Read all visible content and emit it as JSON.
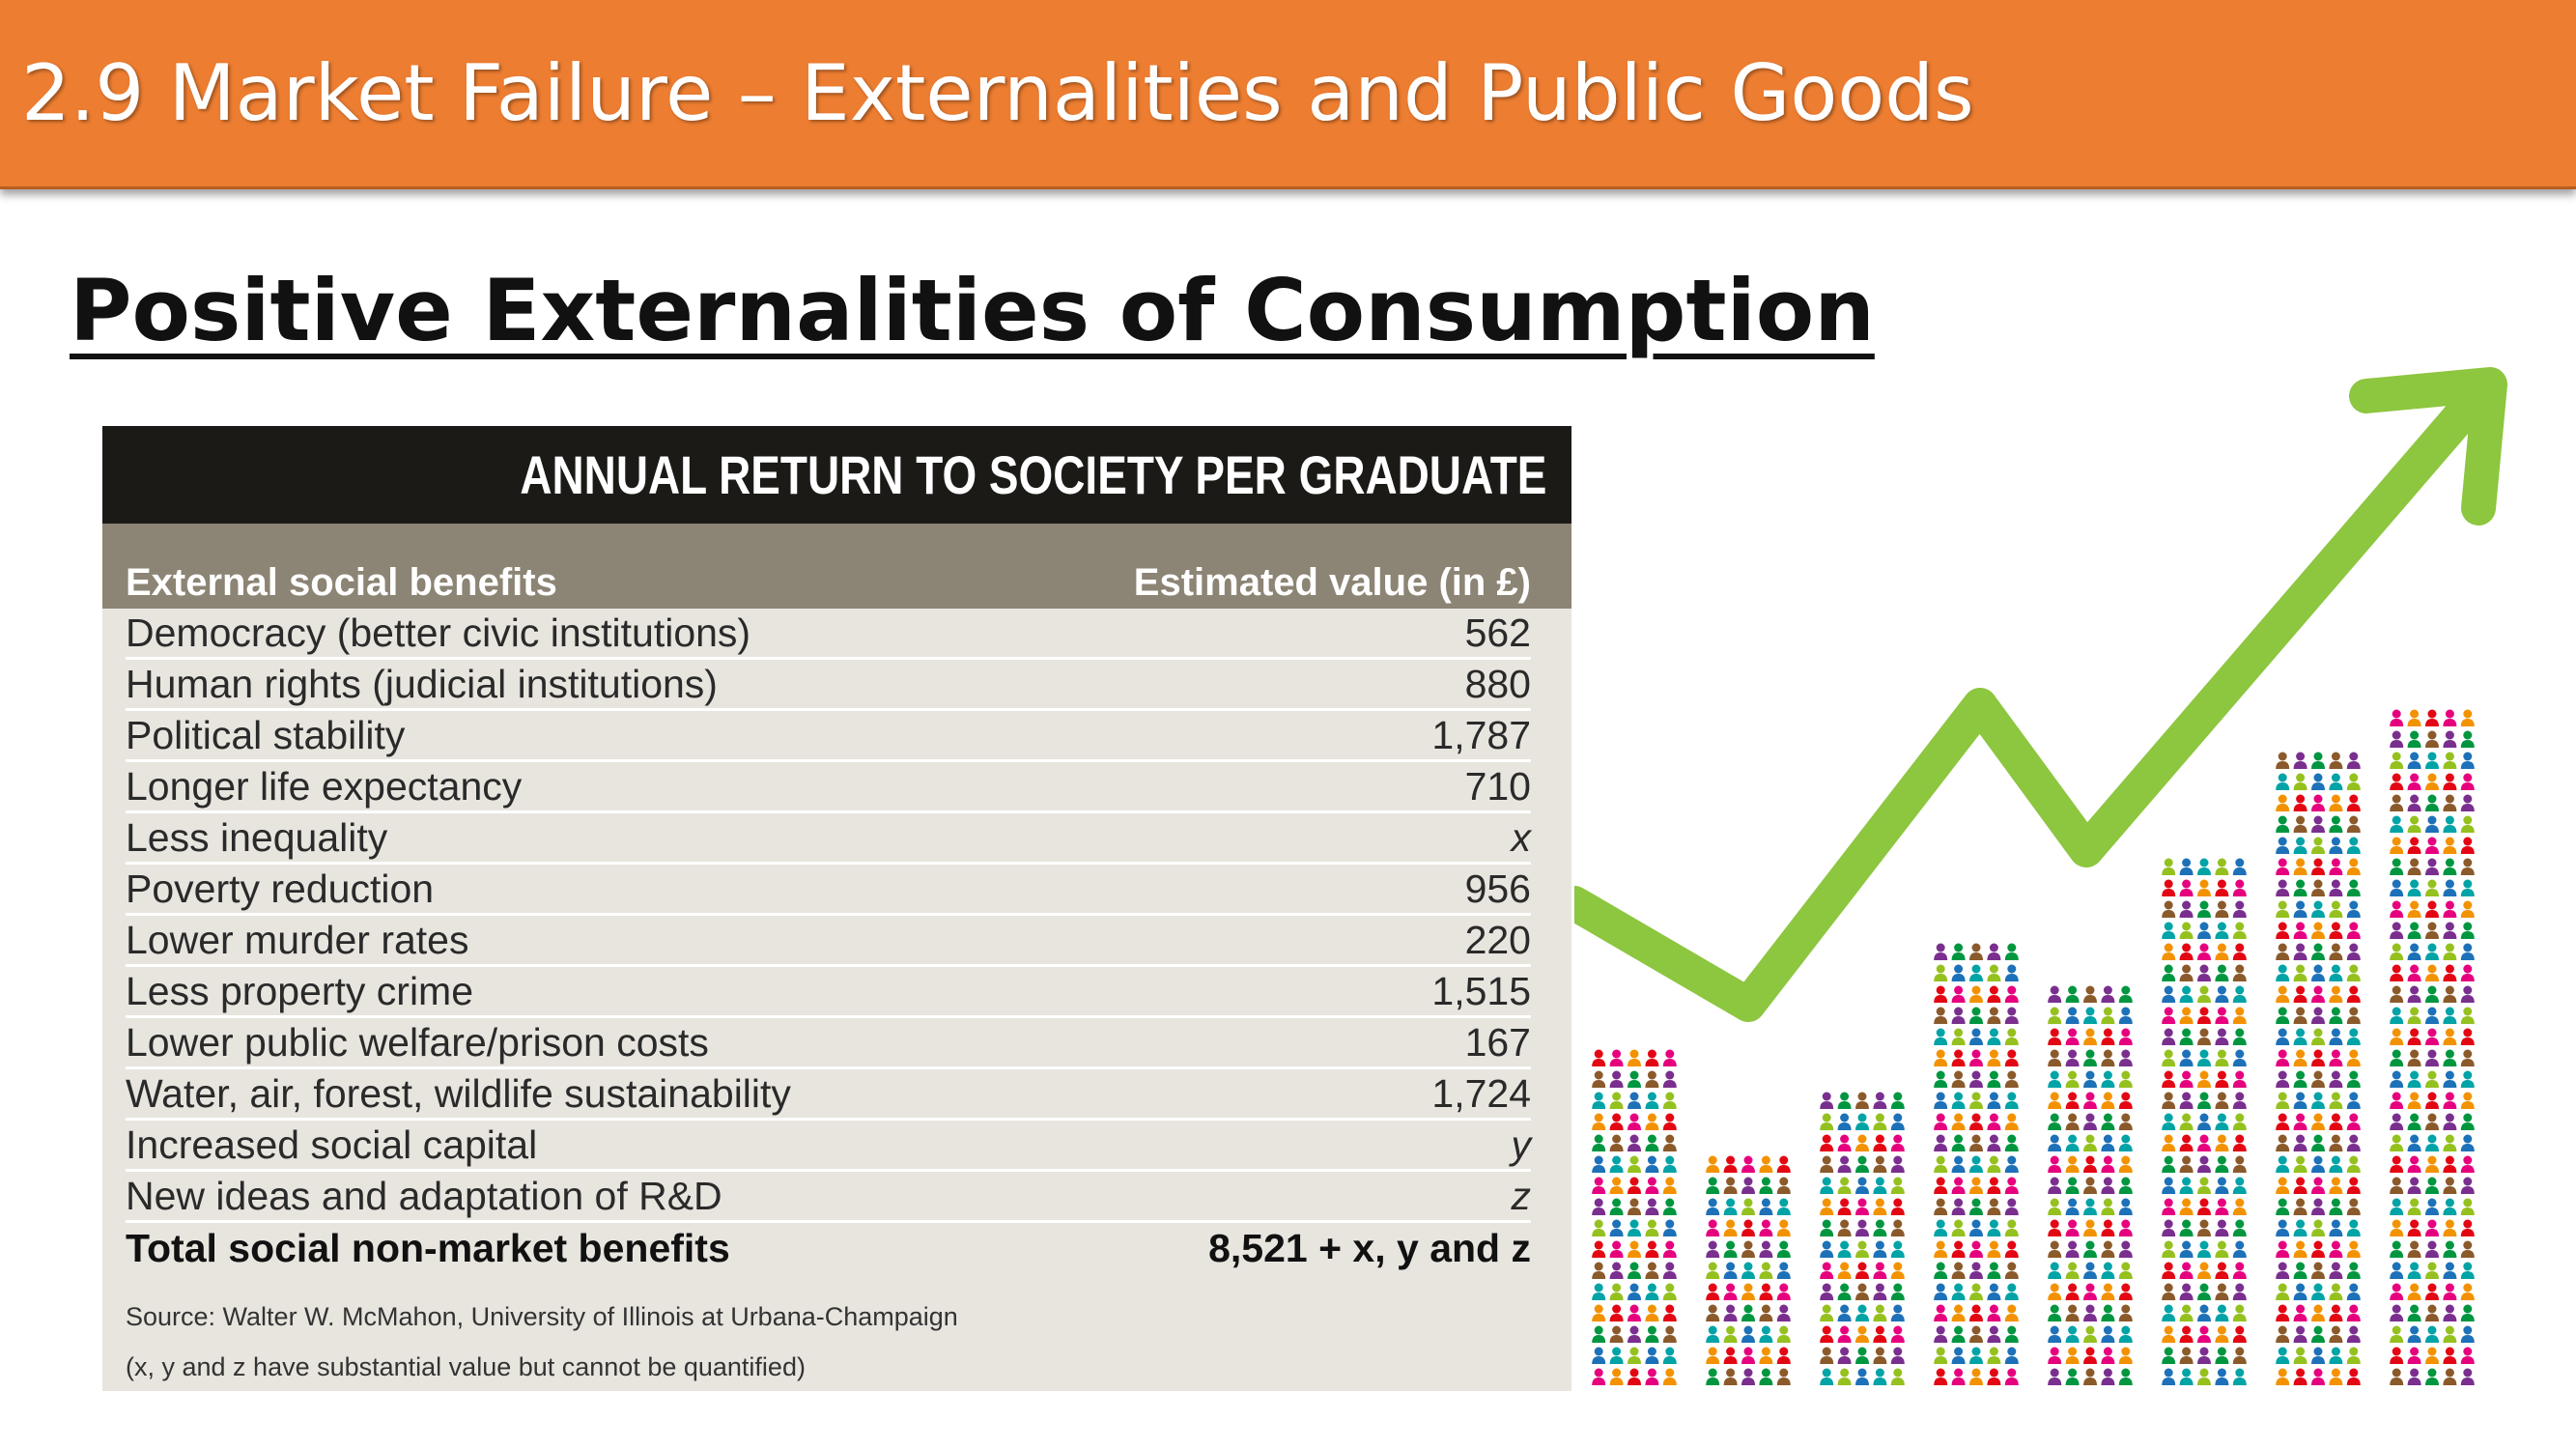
{
  "slide": {
    "title": "2.9 Market Failure – Externalities and Public Goods",
    "subheading": "Positive Externalities of Consumption"
  },
  "table": {
    "heading": "ANNUAL RETURN TO SOCIETY PER GRADUATE",
    "col_left": "External social benefits",
    "col_right": "Estimated value (in £)",
    "rows": [
      {
        "label": "Democracy (better civic institutions)",
        "value": "562"
      },
      {
        "label": "Human rights (judicial institutions)",
        "value": "880"
      },
      {
        "label": "Political stability",
        "value": "1,787"
      },
      {
        "label": "Longer life expectancy",
        "value": "710"
      },
      {
        "label": "Less inequality",
        "value": "x"
      },
      {
        "label": "Poverty reduction",
        "value": "956"
      },
      {
        "label": "Lower murder rates",
        "value": "220"
      },
      {
        "label": "Less property crime",
        "value": "1,515"
      },
      {
        "label": "Lower public welfare/prison costs",
        "value": "167"
      },
      {
        "label": "Water, air, forest, wildlife sustainability",
        "value": "1,724"
      },
      {
        "label": "Increased social capital",
        "value": "y"
      },
      {
        "label": "New ideas and adaptation of R&D",
        "value": "z"
      }
    ],
    "total": {
      "label": "Total social non-market benefits",
      "value": "8,521 + x, y and z"
    },
    "source": "Source: Walter W. McMahon, University of Illinois at Urbana-Champaign",
    "note": "(x, y and z have substantial value but cannot be quantified)"
  },
  "illustration": {
    "arrow_color": "#8dc63f",
    "people_colors": [
      "#e6007e",
      "#00a3a6",
      "#7a2f8f",
      "#f39200",
      "#95c11f",
      "#009640",
      "#e30613",
      "#1d71b8",
      "#8b5a2b"
    ],
    "bar_levels": [
      0.45,
      0.32,
      0.39,
      0.57,
      0.53,
      0.68,
      0.81,
      0.86
    ]
  }
}
